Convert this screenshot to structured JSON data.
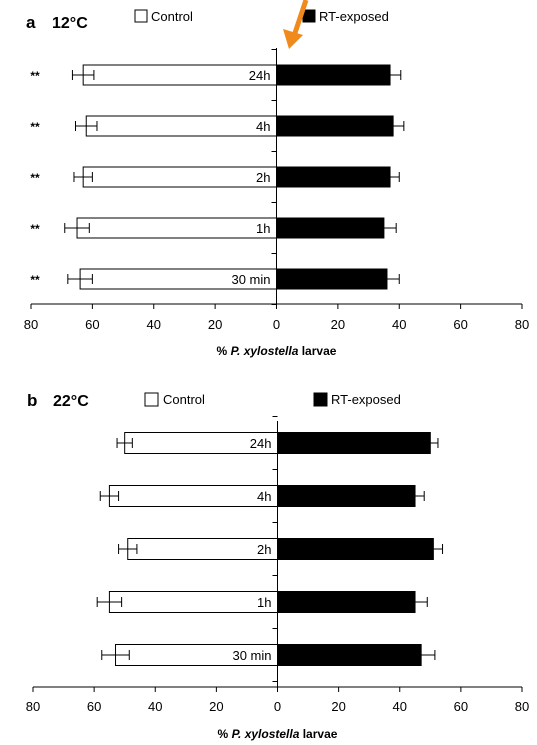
{
  "colors": {
    "control_fill": "#ffffff",
    "exposed_fill": "#000000",
    "arrow": "#f08a1c",
    "axis": "#000000"
  },
  "chart_data": [
    {
      "type": "bar",
      "orientation": "horizontal-diverging",
      "panel_letter": "a",
      "temperature": "12°C",
      "categories": [
        "24h",
        "4h",
        "2h",
        "1h",
        "30 min"
      ],
      "series": [
        {
          "name": "Control",
          "values": [
            63,
            62,
            63,
            65,
            64
          ],
          "errors": [
            3.5,
            3.5,
            3,
            4,
            4
          ]
        },
        {
          "name": "RT-exposed",
          "values": [
            37,
            38,
            37,
            35,
            36
          ],
          "errors": [
            3.5,
            3.5,
            3,
            4,
            4
          ]
        }
      ],
      "significance": [
        "**",
        "**",
        "**",
        "**",
        "**"
      ],
      "xlabel_prefix": "% ",
      "xlabel_species": "P. xylostella",
      "xlabel_suffix": " larvae",
      "xticks": [
        "80",
        "60",
        "40",
        "20",
        "0",
        "20",
        "40",
        "60",
        "80"
      ],
      "xlim": [
        -80,
        80
      ],
      "legend_position": "top",
      "grid": false,
      "annotation": "orange arrow pointing at the axis divider"
    },
    {
      "type": "bar",
      "orientation": "horizontal-diverging",
      "panel_letter": "b",
      "temperature": "22°C",
      "categories": [
        "24h",
        "4h",
        "2h",
        "1h",
        "30 min"
      ],
      "series": [
        {
          "name": "Control",
          "values": [
            50,
            55,
            49,
            55,
            53
          ],
          "errors": [
            2.5,
            3,
            3,
            4,
            4.5
          ]
        },
        {
          "name": "RT-exposed",
          "values": [
            50,
            45,
            51,
            45,
            47
          ],
          "errors": [
            2.5,
            3,
            3,
            4,
            4.5
          ]
        }
      ],
      "significance": [
        "",
        "",
        "",
        "",
        ""
      ],
      "xlabel_prefix": "% ",
      "xlabel_species": "P. xylostella",
      "xlabel_suffix": " larvae",
      "xticks": [
        "80",
        "60",
        "40",
        "20",
        "0",
        "20",
        "40",
        "60",
        "80"
      ],
      "xlim": [
        -80,
        80
      ],
      "legend_position": "top",
      "grid": false
    }
  ]
}
